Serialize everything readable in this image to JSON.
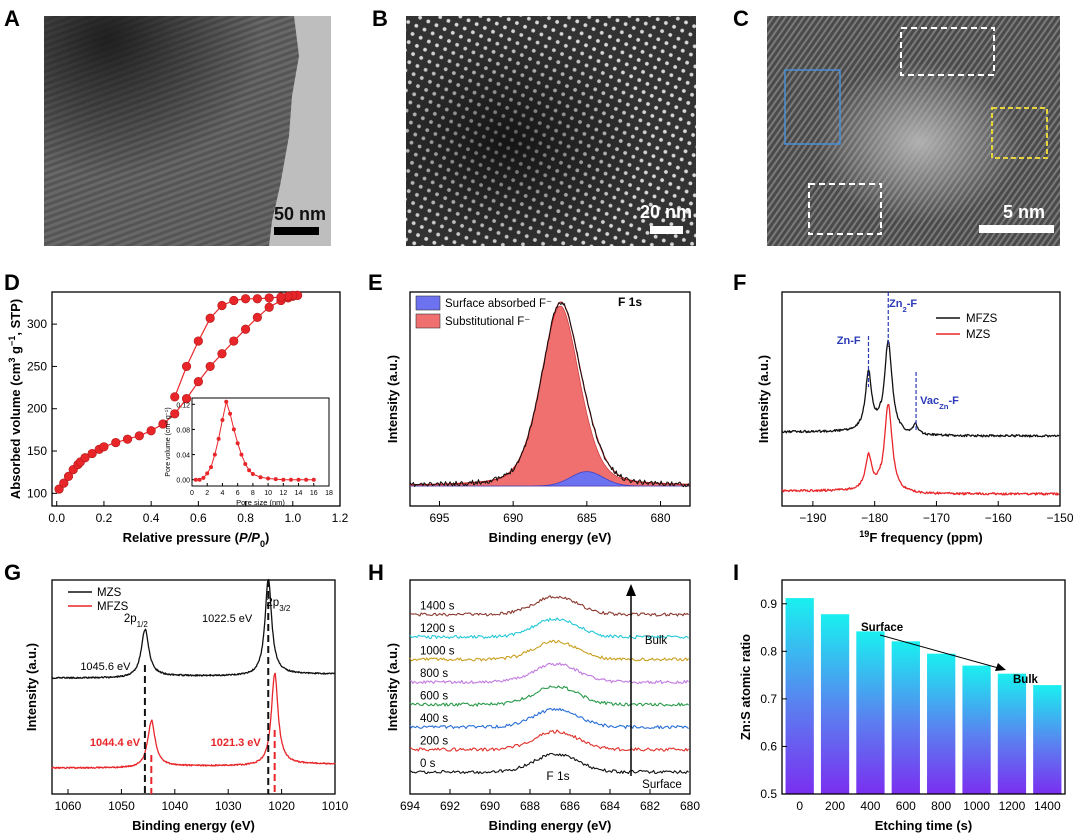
{
  "panels": {
    "A": {
      "letter": "A",
      "scale": "50 nm"
    },
    "B": {
      "letter": "B",
      "scale": "20 nm"
    },
    "C": {
      "letter": "C",
      "scale": "5 nm"
    },
    "D": {
      "letter": "D"
    },
    "E": {
      "letter": "E"
    },
    "F": {
      "letter": "F"
    },
    "G": {
      "letter": "G"
    },
    "H": {
      "letter": "H"
    },
    "I": {
      "letter": "I"
    }
  },
  "colors": {
    "red": "#e8262a",
    "black": "#111111",
    "blue_fill": "#6d73f0",
    "red_fill": "#f07070"
  },
  "chart_data": [
    {
      "id": "D",
      "type": "line",
      "xlabel": "Relative pressure (P/P0)",
      "ylabel": "Absorbed volume (cm3 g-1, STP)",
      "xlim": [
        -0.02,
        1.2
      ],
      "ylim": [
        85,
        338
      ],
      "xticks": [
        "0.0",
        "0.2",
        "0.4",
        "0.6",
        "0.8",
        "1.0",
        "1.2"
      ],
      "yticks": [
        "100",
        "150",
        "200",
        "250",
        "300"
      ],
      "series": [
        {
          "name": "adsorption",
          "x": [
            0.01,
            0.03,
            0.05,
            0.07,
            0.09,
            0.1,
            0.12,
            0.15,
            0.18,
            0.2,
            0.25,
            0.3,
            0.35,
            0.4,
            0.45,
            0.5,
            0.55,
            0.6,
            0.65,
            0.7,
            0.75,
            0.8,
            0.85,
            0.9,
            0.95,
            0.98,
            1.0,
            1.02
          ],
          "y": [
            105,
            112,
            120,
            128,
            134,
            137,
            142,
            147,
            152,
            155,
            160,
            164,
            168,
            174,
            182,
            194,
            212,
            232,
            250,
            265,
            280,
            294,
            308,
            320,
            328,
            331,
            333,
            334
          ]
        },
        {
          "name": "desorption",
          "x": [
            1.02,
            1.0,
            0.98,
            0.95,
            0.9,
            0.85,
            0.8,
            0.75,
            0.7,
            0.65,
            0.6,
            0.55,
            0.5
          ],
          "y": [
            334,
            334,
            333,
            332,
            331,
            330,
            330,
            328,
            322,
            307,
            280,
            250,
            214
          ]
        }
      ],
      "inset": {
        "xlabel": "Pore size (nm)",
        "ylabel": "Pore volume (cm3 g-1)",
        "xlim": [
          0,
          18
        ],
        "ylim": [
          -0.01,
          0.13
        ],
        "xticks": [
          "0",
          "2",
          "4",
          "6",
          "8",
          "10",
          "12",
          "14",
          "16",
          "18"
        ],
        "yticks": [
          "0.00",
          "0.04",
          "0.08",
          "0.12"
        ],
        "x": [
          0.5,
          1.0,
          1.5,
          2.0,
          2.5,
          3.0,
          3.5,
          4.0,
          4.5,
          5.0,
          5.5,
          6.0,
          6.5,
          7.0,
          7.5,
          8.0,
          9.0,
          10.0,
          11.0,
          12.0,
          13.0,
          14.0,
          15.0,
          16.0
        ],
        "y": [
          0.0,
          0.0,
          0.003,
          0.01,
          0.02,
          0.04,
          0.065,
          0.095,
          0.124,
          0.105,
          0.08,
          0.058,
          0.04,
          0.025,
          0.015,
          0.009,
          0.004,
          0.002,
          0.001,
          0.0,
          0.0,
          0.0,
          0.0,
          0.0
        ]
      }
    },
    {
      "id": "E",
      "type": "area",
      "title": "F 1s",
      "xlabel": "Binding energy (eV)",
      "ylabel": "Intensity (a.u.)",
      "xlim": [
        697,
        678
      ],
      "xticks": [
        "695",
        "690",
        "685",
        "680"
      ],
      "legend": [
        "Surface absorbed F⁻",
        "Substitutional F⁻"
      ],
      "peaks": [
        {
          "name": "Substitutional F⁻",
          "center": 686.8,
          "height": 1.0,
          "width": 1.35
        },
        {
          "name": "Surface absorbed F⁻",
          "center": 685.0,
          "height": 0.08,
          "width": 1.1
        }
      ]
    },
    {
      "id": "F",
      "type": "line",
      "xlabel": "19F frequency (ppm)",
      "ylabel": "Intensity (a.u.)",
      "xlim": [
        -195,
        -150
      ],
      "xticks": [
        "-190",
        "-180",
        "-170",
        "-160",
        "-150"
      ],
      "series": [
        {
          "name": "MFZS"
        },
        {
          "name": "MZS"
        }
      ],
      "annotations": [
        {
          "text": "Zn-F",
          "x": -181.0
        },
        {
          "text": "Zn2-F",
          "x": -177.8
        },
        {
          "text": "VacZn-F",
          "x": -173.3
        }
      ]
    },
    {
      "id": "G",
      "type": "line",
      "xlabel": "Binding energy (eV)",
      "ylabel": "Intensity (a.u.)",
      "xlim": [
        1063,
        1010
      ],
      "xticks": [
        "1060",
        "1050",
        "1040",
        "1030",
        "1020",
        "1010"
      ],
      "series": [
        {
          "name": "MZS"
        },
        {
          "name": "MFZS"
        }
      ],
      "annotations": [
        {
          "text": "2p1/2",
          "x": 1045.6
        },
        {
          "text": "2p3/2",
          "x": 1022.5
        },
        {
          "text": "1045.6 eV",
          "series": "MZS"
        },
        {
          "text": "1022.5 eV",
          "series": "MZS"
        },
        {
          "text": "1044.4 eV",
          "series": "MFZS"
        },
        {
          "text": "1021.3 eV",
          "series": "MFZS"
        }
      ]
    },
    {
      "id": "H",
      "type": "line",
      "title": "F 1s",
      "xlabel": "Binding energy (eV)",
      "ylabel": "Intensity (a.u.)",
      "xlim": [
        694,
        680
      ],
      "xticks": [
        "694",
        "692",
        "690",
        "688",
        "686",
        "684",
        "682",
        "680"
      ],
      "series": [
        {
          "name": "0 s",
          "color": "#111111"
        },
        {
          "name": "200 s",
          "color": "#e0302a"
        },
        {
          "name": "400 s",
          "color": "#2a6fd6"
        },
        {
          "name": "600 s",
          "color": "#2a9a4a"
        },
        {
          "name": "800 s",
          "color": "#c27be0"
        },
        {
          "name": "1000 s",
          "color": "#c9a020"
        },
        {
          "name": "1200 s",
          "color": "#25c8d8"
        },
        {
          "name": "1400 s",
          "color": "#8c3a30"
        }
      ],
      "annotations": [
        "Bulk",
        "Surface"
      ]
    },
    {
      "id": "I",
      "type": "bar",
      "xlabel": "Etching time (s)",
      "ylabel": "Zn:S atomic ratio",
      "categories": [
        "0",
        "200",
        "400",
        "600",
        "800",
        "1000",
        "1200",
        "1400"
      ],
      "values": [
        0.912,
        0.878,
        0.842,
        0.821,
        0.795,
        0.77,
        0.753,
        0.729
      ],
      "ylim": [
        0.5,
        0.95
      ],
      "yticks": [
        "0.5",
        "0.6",
        "0.7",
        "0.8",
        "0.9"
      ],
      "annotations": [
        "Surface",
        "Bulk"
      ]
    }
  ]
}
